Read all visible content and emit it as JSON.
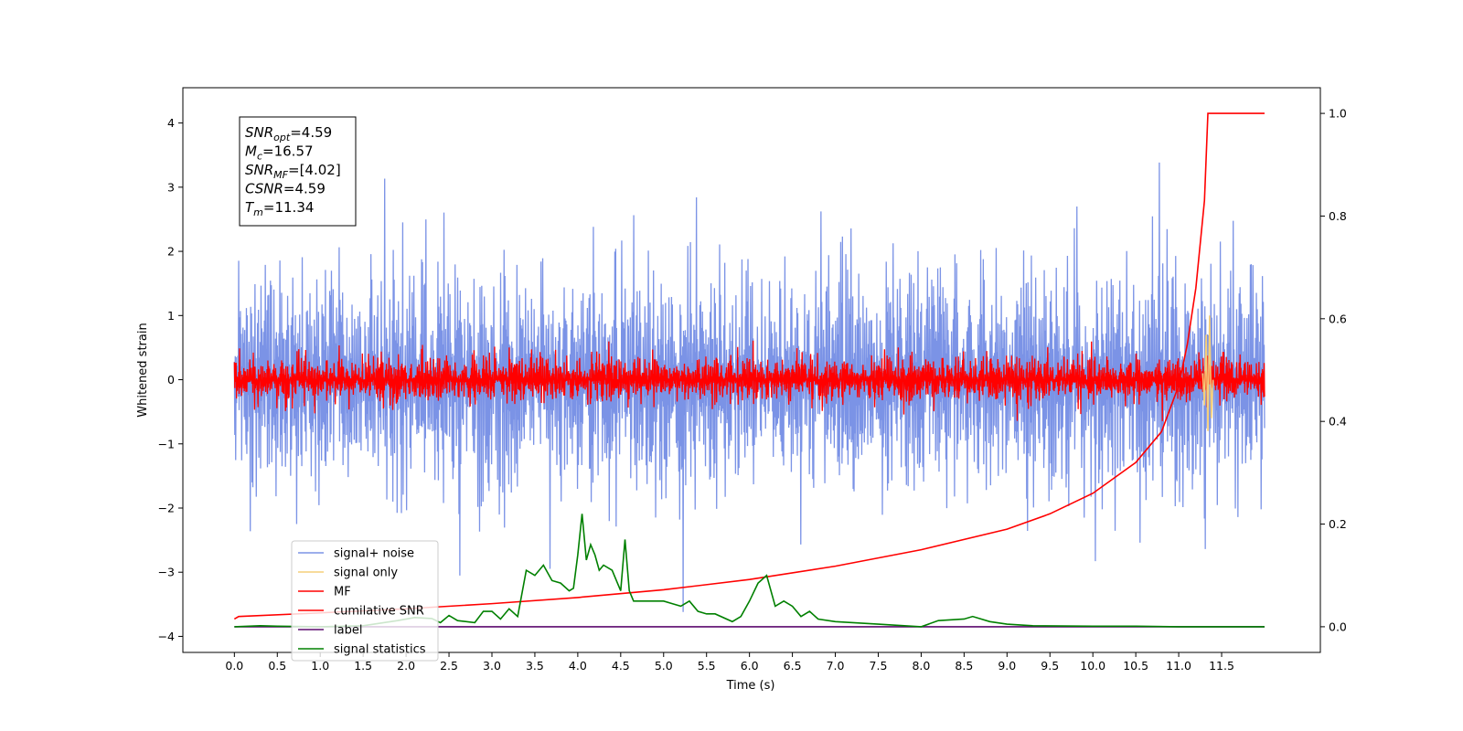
{
  "chart_data": {
    "type": "line",
    "xlabel": "Time (s)",
    "ylabel": "Whitened strain",
    "xlim": [
      -0.6,
      12.65
    ],
    "ylim": [
      -4.25,
      4.55
    ],
    "y2lim": [
      -0.05,
      1.05
    ],
    "x_ticks": [
      "0.0",
      "0.5",
      "1.0",
      "1.5",
      "2.0",
      "2.5",
      "3.0",
      "3.5",
      "4.0",
      "4.5",
      "5.0",
      "5.5",
      "6.0",
      "6.5",
      "7.0",
      "7.5",
      "8.0",
      "8.5",
      "9.0",
      "9.5",
      "10.0",
      "10.5",
      "11.0",
      "11.5"
    ],
    "y_ticks": [
      "−4",
      "−3",
      "−2",
      "−1",
      "0",
      "1",
      "2",
      "3",
      "4"
    ],
    "y2_ticks": [
      "0.0",
      "0.2",
      "0.4",
      "0.6",
      "0.8",
      "1.0"
    ],
    "annotation": {
      "lines": [
        {
          "main": "SNR",
          "sub": "opt",
          "rest": "=4.59"
        },
        {
          "main": "M",
          "sub": "c",
          "rest": "=16.57"
        },
        {
          "main": "SNR",
          "sub": "MF",
          "rest": "=[4.02]"
        },
        {
          "main": "CSNR",
          "sub": "",
          "rest": "=4.59"
        },
        {
          "main": "T",
          "sub": "m",
          "rest": "=11.34"
        }
      ]
    },
    "legend": {
      "placement": "lower-left",
      "entries": [
        {
          "label": "signal+ noise",
          "color": "#7b93e6"
        },
        {
          "label": "signal only",
          "color": "#f5cf7a"
        },
        {
          "label": "MF",
          "color": "#ff0000"
        },
        {
          "label": "cumilative SNR",
          "color": "#ff0000"
        },
        {
          "label": "label",
          "color": "#5b0a6e"
        },
        {
          "label": "signal statistics",
          "color": "#008000"
        }
      ]
    },
    "series": [
      {
        "name": "signal+ noise",
        "axis": "left",
        "color": "#7b93e6",
        "x_range": [
          0,
          12.0
        ],
        "noise_sigma": 1.0,
        "noise_center": 0.0,
        "samples": 2400
      },
      {
        "name": "MF",
        "axis": "left",
        "color": "#ff0000",
        "x_range": [
          0,
          12.0
        ],
        "noise_sigma": 0.2,
        "noise_center": 0.0,
        "samples": 2400
      },
      {
        "name": "signal only",
        "axis": "left",
        "color": "#f5cf7a",
        "x": [
          11.28,
          11.3,
          11.32,
          11.34,
          11.36,
          11.38,
          11.4
        ],
        "y": [
          0.1,
          -0.4,
          0.7,
          -0.8,
          1.0,
          -0.6,
          0.0
        ]
      },
      {
        "name": "cumilative SNR",
        "axis": "right",
        "color": "#ff0000",
        "x": [
          0.0,
          0.05,
          1.0,
          2.0,
          3.0,
          4.0,
          5.0,
          6.0,
          7.0,
          8.0,
          9.0,
          9.5,
          10.0,
          10.5,
          10.8,
          11.0,
          11.1,
          11.2,
          11.3,
          11.34,
          11.35,
          12.0
        ],
        "y": [
          0.015,
          0.02,
          0.027,
          0.035,
          0.045,
          0.057,
          0.072,
          0.092,
          0.118,
          0.15,
          0.19,
          0.22,
          0.26,
          0.32,
          0.38,
          0.47,
          0.55,
          0.66,
          0.83,
          1.0,
          1.0,
          1.0
        ]
      },
      {
        "name": "label",
        "axis": "right",
        "color": "#5b0a6e",
        "x": [
          0.0,
          12.0
        ],
        "y": [
          0.0,
          0.0
        ]
      },
      {
        "name": "signal statistics",
        "axis": "right",
        "color": "#008000",
        "x": [
          0.0,
          0.3,
          0.5,
          1.0,
          1.5,
          1.9,
          2.1,
          2.3,
          2.4,
          2.5,
          2.6,
          2.8,
          2.9,
          3.0,
          3.1,
          3.2,
          3.3,
          3.4,
          3.5,
          3.6,
          3.7,
          3.8,
          3.9,
          3.95,
          4.0,
          4.05,
          4.1,
          4.15,
          4.2,
          4.25,
          4.3,
          4.4,
          4.5,
          4.55,
          4.6,
          4.65,
          4.7,
          4.8,
          5.0,
          5.1,
          5.2,
          5.3,
          5.4,
          5.5,
          5.6,
          5.8,
          5.9,
          6.0,
          6.1,
          6.2,
          6.3,
          6.4,
          6.5,
          6.6,
          6.7,
          6.8,
          7.0,
          7.5,
          8.0,
          8.2,
          8.5,
          8.6,
          8.8,
          9.0,
          9.3,
          10.0,
          10.5,
          11.0,
          11.5,
          12.0
        ],
        "y": [
          0.0,
          0.002,
          0.001,
          0.0,
          0.002,
          0.012,
          0.018,
          0.016,
          0.008,
          0.022,
          0.012,
          0.008,
          0.03,
          0.03,
          0.015,
          0.035,
          0.02,
          0.11,
          0.1,
          0.12,
          0.09,
          0.085,
          0.07,
          0.075,
          0.14,
          0.22,
          0.13,
          0.16,
          0.14,
          0.11,
          0.12,
          0.11,
          0.07,
          0.17,
          0.07,
          0.05,
          0.05,
          0.05,
          0.05,
          0.045,
          0.04,
          0.05,
          0.03,
          0.025,
          0.025,
          0.01,
          0.02,
          0.05,
          0.085,
          0.1,
          0.04,
          0.05,
          0.04,
          0.02,
          0.03,
          0.015,
          0.01,
          0.005,
          0.0,
          0.012,
          0.015,
          0.02,
          0.01,
          0.005,
          0.002,
          0.001,
          0.001,
          0.0,
          0.0,
          0.0
        ]
      }
    ]
  }
}
